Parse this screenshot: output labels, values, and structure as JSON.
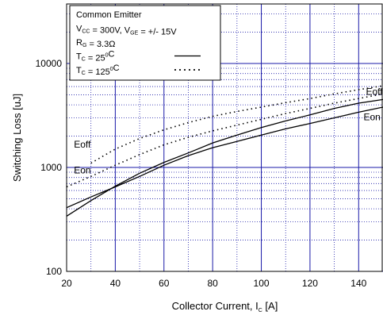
{
  "chart_data": {
    "type": "line",
    "xlabel": "Collector Current, I",
    "xlabel_sub": "C",
    "xlabel_unit": " [A]",
    "ylabel": "Switching Loss [uJ]",
    "xlim": [
      20,
      150
    ],
    "ylim": [
      100,
      30000
    ],
    "yscale": "log",
    "grid": true,
    "x_ticks": [
      20,
      40,
      60,
      80,
      100,
      120,
      140
    ],
    "y_ticks": [
      100,
      1000,
      10000
    ],
    "legend": {
      "placement": "top-left",
      "lines": [
        {
          "parts": [
            {
              "t": "Common Emitter"
            }
          ]
        },
        {
          "parts": [
            {
              "t": "V"
            },
            {
              "t": "CC",
              "sub": true
            },
            {
              "t": " = 300V, V"
            },
            {
              "t": "GE",
              "sub": true
            },
            {
              "t": " = +/- 15V"
            }
          ]
        },
        {
          "parts": [
            {
              "t": "R"
            },
            {
              "t": "G",
              "sub": true
            },
            {
              "t": " = 3.3Ω"
            }
          ]
        },
        {
          "parts": [
            {
              "t": "T"
            },
            {
              "t": "C",
              "sub": true
            },
            {
              "t": " = 25"
            },
            {
              "t": "0",
              "sup": true
            },
            {
              "t": "C"
            }
          ],
          "sample": "solid"
        },
        {
          "parts": [
            {
              "t": "T"
            },
            {
              "t": "C",
              "sub": true
            },
            {
              "t": " = 125"
            },
            {
              "t": "0",
              "sup": true
            },
            {
              "t": "C"
            }
          ],
          "sample": "dotted"
        }
      ]
    },
    "annotations": [
      {
        "text": "Eoff",
        "x": 143,
        "y": 5000
      },
      {
        "text": "Eon",
        "x": 142,
        "y": 2850
      },
      {
        "text": "Eoff",
        "x": 23,
        "y": 1550
      },
      {
        "text": "Eon",
        "x": 23,
        "y": 880
      }
    ],
    "series": [
      {
        "style": "solid",
        "x": [
          20,
          30,
          40,
          50,
          60,
          70,
          80,
          90,
          100,
          110,
          120,
          130,
          140,
          150
        ],
        "y": [
          410,
          520,
          650,
          820,
          1050,
          1300,
          1550,
          1780,
          2050,
          2350,
          2650,
          3000,
          3400,
          3800
        ]
      },
      {
        "style": "solid",
        "x": [
          20,
          30,
          40,
          50,
          60,
          70,
          80,
          90,
          100,
          110,
          120,
          130,
          140,
          150
        ],
        "y": [
          340,
          480,
          660,
          880,
          1120,
          1380,
          1720,
          2050,
          2420,
          2800,
          3200,
          3700,
          4150,
          4500
        ]
      },
      {
        "style": "dotted",
        "x": [
          20,
          30,
          40,
          50,
          60,
          70,
          80,
          90,
          100,
          110,
          120,
          130,
          140,
          150
        ],
        "y": [
          650,
          820,
          1050,
          1330,
          1650,
          1950,
          2250,
          2550,
          2900,
          3300,
          3700,
          4150,
          4600,
          5100
        ]
      },
      {
        "style": "dotted",
        "x": [
          30,
          40,
          50,
          60,
          70,
          80,
          90,
          100,
          110,
          120,
          130,
          140,
          150
        ],
        "y": [
          1100,
          1500,
          1900,
          2300,
          2700,
          3100,
          3450,
          3800,
          4200,
          4600,
          5100,
          5600,
          6100
        ]
      }
    ]
  }
}
